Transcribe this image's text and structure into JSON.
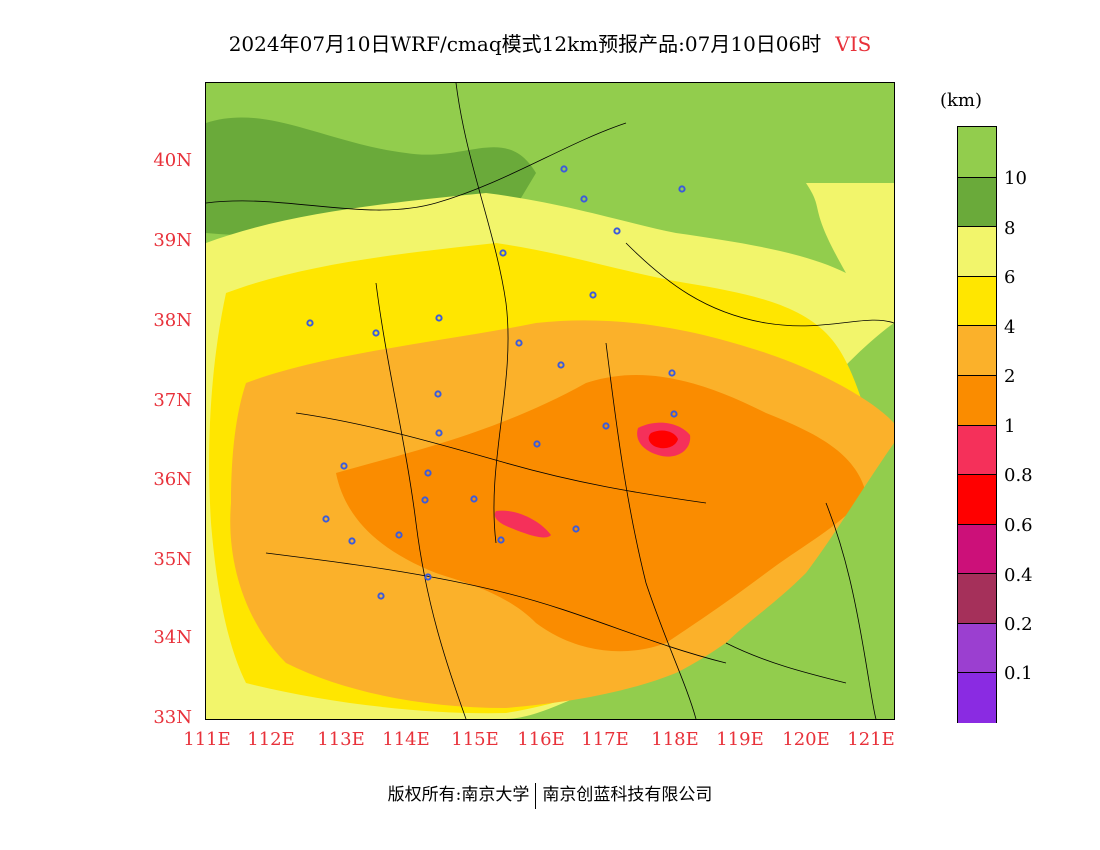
{
  "title": {
    "text": "2024年07月10日WRF/cmaq模式12km预报产品:07月10日06时",
    "variable": "VIS"
  },
  "lat_labels": [
    "40N",
    "39N",
    "38N",
    "37N",
    "36N",
    "35N",
    "34N",
    "33N"
  ],
  "lon_labels": [
    "111E",
    "112E",
    "113E",
    "114E",
    "115E",
    "116E",
    "117E",
    "118E",
    "119E",
    "120E",
    "121E"
  ],
  "colorbar": {
    "unit": "(km)",
    "ticks": [
      "10",
      "8",
      "6",
      "4",
      "2",
      "1",
      "0.8",
      "0.6",
      "0.4",
      "0.2",
      "0.1"
    ],
    "colors": [
      "#92cd4d",
      "#6aaa3a",
      "#f2f56b",
      "#ffe600",
      "#fbb12a",
      "#fa8c00",
      "#f5305a",
      "#ff0000",
      "#cc1079",
      "#a5305a",
      "#9b3fd0",
      "#8a2be2"
    ]
  },
  "footer": {
    "left": "版权所有:南京大学",
    "right": "南京创蓝科技有限公司"
  }
}
